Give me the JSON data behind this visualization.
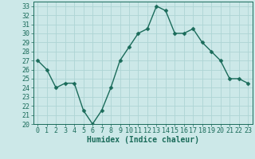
{
  "x": [
    0,
    1,
    2,
    3,
    4,
    5,
    6,
    7,
    8,
    9,
    10,
    11,
    12,
    13,
    14,
    15,
    16,
    17,
    18,
    19,
    20,
    21,
    22,
    23
  ],
  "y": [
    27,
    26,
    24,
    24.5,
    24.5,
    21.5,
    20,
    21.5,
    24,
    27,
    28.5,
    30,
    30.5,
    33,
    32.5,
    30,
    30,
    30.5,
    29,
    28,
    27,
    25,
    25,
    24.5
  ],
  "line_color": "#1a6b5a",
  "marker": "D",
  "marker_size": 2.5,
  "bg_color": "#cce8e8",
  "grid_color": "#aed4d4",
  "xlabel": "Humidex (Indice chaleur)",
  "xlim": [
    -0.5,
    23.5
  ],
  "ylim": [
    20,
    33.5
  ],
  "yticks": [
    20,
    21,
    22,
    23,
    24,
    25,
    26,
    27,
    28,
    29,
    30,
    31,
    32,
    33
  ],
  "xticks": [
    0,
    1,
    2,
    3,
    4,
    5,
    6,
    7,
    8,
    9,
    10,
    11,
    12,
    13,
    14,
    15,
    16,
    17,
    18,
    19,
    20,
    21,
    22,
    23
  ],
  "tick_color": "#1a6b5a",
  "label_color": "#1a6b5a",
  "font_size": 6,
  "xlabel_fontsize": 7,
  "line_width": 1.0
}
